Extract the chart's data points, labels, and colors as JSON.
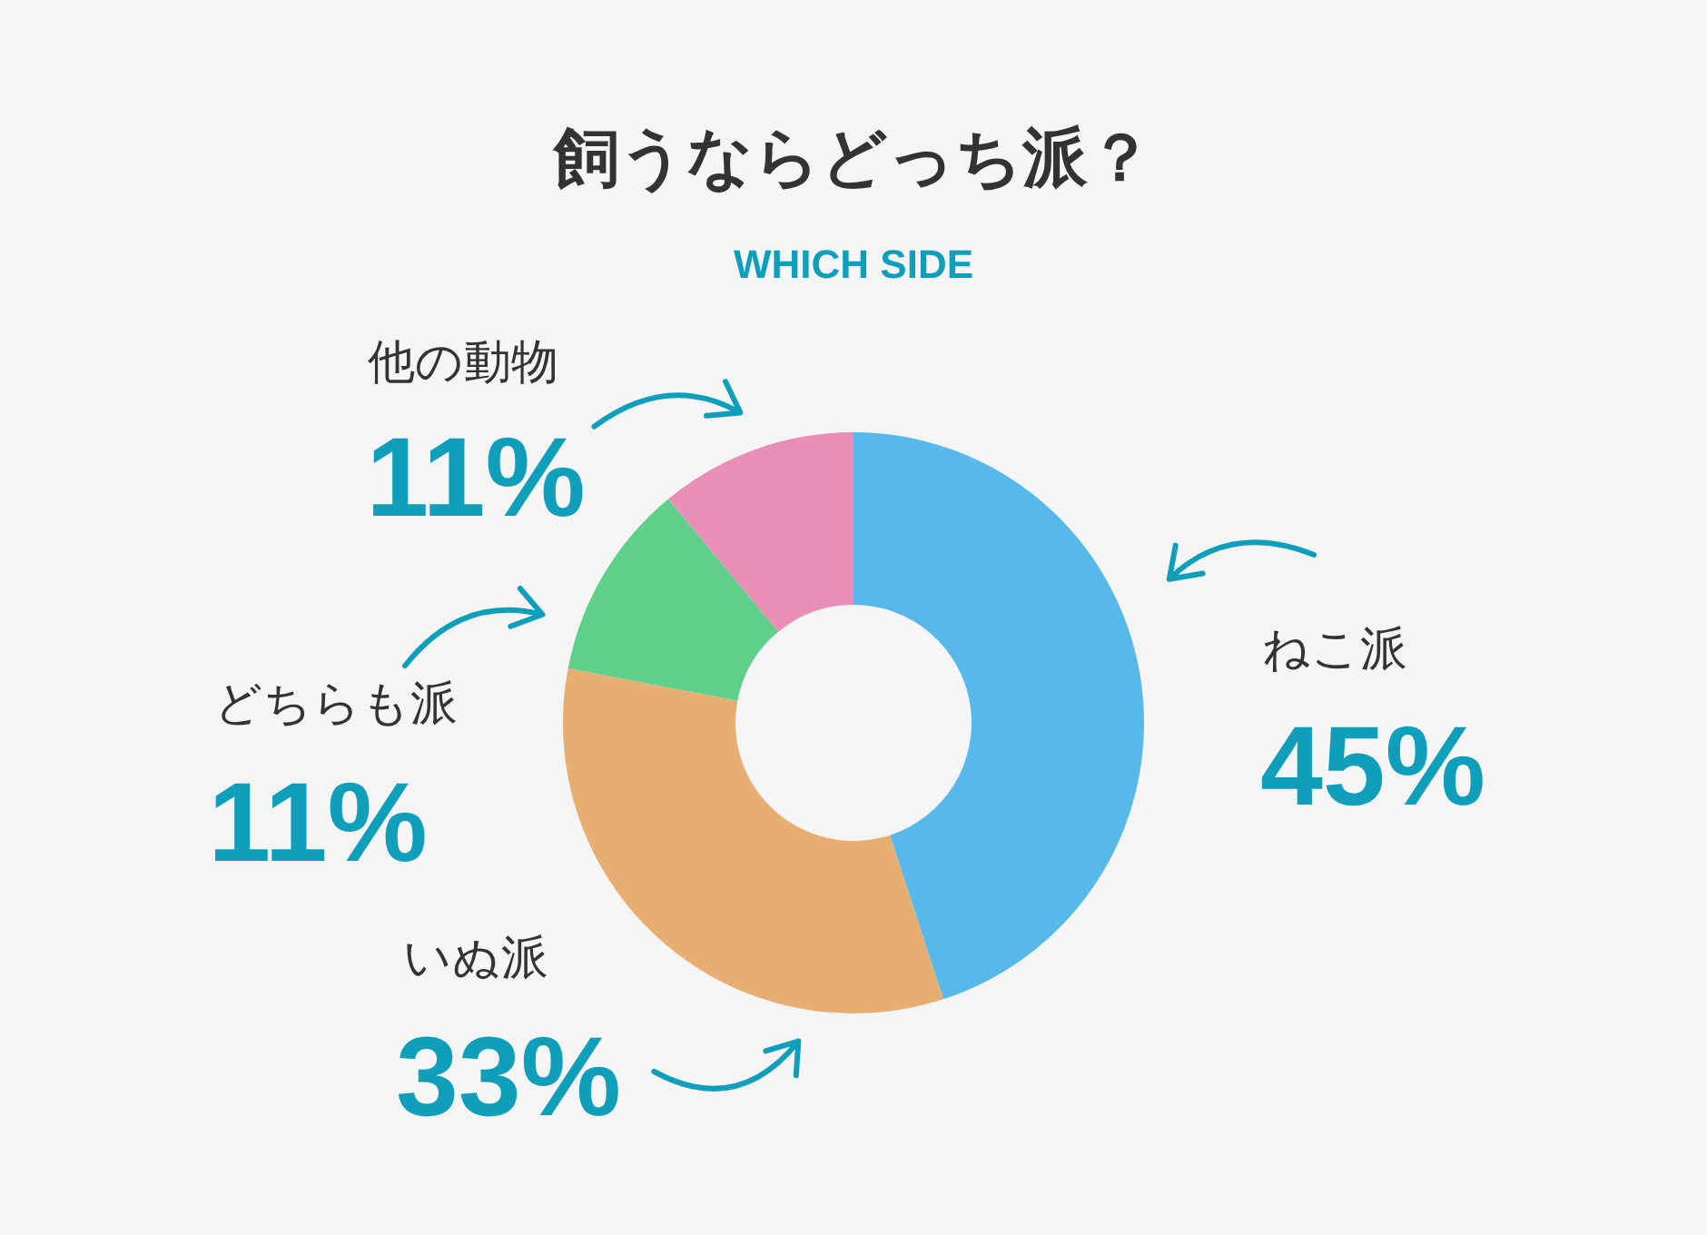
{
  "chart_data": {
    "type": "donut",
    "title": "飼うならどっち派？",
    "subtitle": "WHICH SIDE",
    "categories": [
      "ねこ派",
      "いぬ派",
      "どちらも派",
      "他の動物"
    ],
    "values": [
      45,
      33,
      11,
      11
    ],
    "colors": [
      "#56b9ea",
      "#e6ae70",
      "#5fd08b",
      "#e98fb6"
    ],
    "value_labels": [
      "45%",
      "33%",
      "11%",
      "11%"
    ]
  }
}
